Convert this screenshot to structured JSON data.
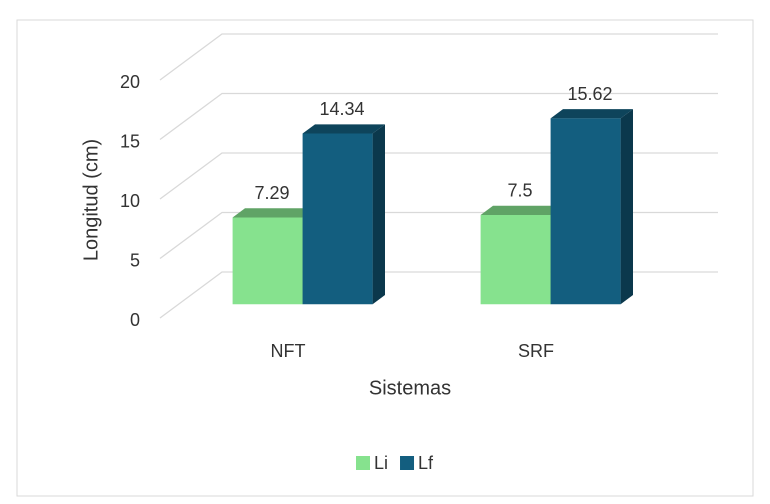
{
  "chart_data": {
    "type": "bar",
    "x_label": "Sistemas",
    "y_label": "Longitud (cm)",
    "categories": [
      "NFT",
      "SRF"
    ],
    "series": [
      {
        "name": "Li",
        "color": "#86e28e",
        "values": [
          7.29,
          7.5
        ]
      },
      {
        "name": "Lf",
        "color": "#135e7f",
        "values": [
          14.34,
          15.62
        ]
      }
    ],
    "ylim": [
      0,
      20
    ],
    "yticks": [
      0,
      5,
      10,
      15,
      20
    ],
    "grid": true,
    "legend": "bottom"
  }
}
